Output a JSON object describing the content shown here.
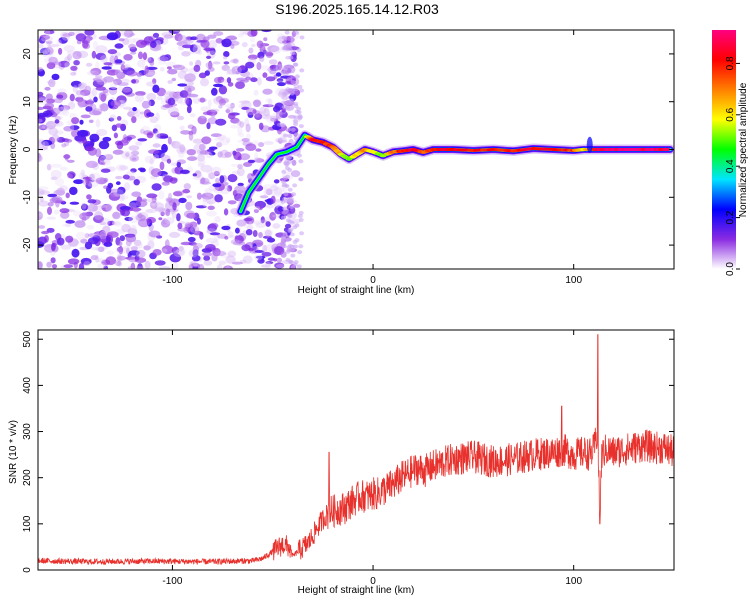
{
  "title": "S196.2025.165.14.12.R03",
  "chart_data": [
    {
      "type": "heatmap",
      "xlabel": "Height of straight line (km)",
      "ylabel": "Frequency (Hz)",
      "xlim": [
        -167,
        150
      ],
      "ylim": [
        -25,
        25
      ],
      "xticks": [
        -100,
        0,
        100
      ],
      "yticks": [
        -20,
        -10,
        0,
        10,
        20
      ],
      "colorbar": {
        "label": "Normalized spectral amplitude",
        "range": [
          0.0,
          0.93
        ],
        "ticks": [
          0.0,
          0.2,
          0.4,
          0.6,
          0.8
        ],
        "colors": [
          "#ffffff",
          "#8a2be2",
          "#0000ff",
          "#00e5ff",
          "#00ff00",
          "#ffff00",
          "#ff8000",
          "#ff0000",
          "#ff0080"
        ]
      },
      "track": [
        {
          "x": -66,
          "y": -13,
          "a": 0.35
        },
        {
          "x": -62,
          "y": -9,
          "a": 0.4
        },
        {
          "x": -57,
          "y": -6,
          "a": 0.35
        },
        {
          "x": -52,
          "y": -3,
          "a": 0.3
        },
        {
          "x": -48,
          "y": -1,
          "a": 0.4
        },
        {
          "x": -43,
          "y": -0.5,
          "a": 0.45
        },
        {
          "x": -38,
          "y": 0.5,
          "a": 0.4
        },
        {
          "x": -34,
          "y": 3,
          "a": 0.45
        },
        {
          "x": -30,
          "y": 2,
          "a": 0.85
        },
        {
          "x": -25,
          "y": 1.5,
          "a": 0.8
        },
        {
          "x": -20,
          "y": 0.5,
          "a": 0.75
        },
        {
          "x": -16,
          "y": -1,
          "a": 0.6
        },
        {
          "x": -12,
          "y": -2,
          "a": 0.5
        },
        {
          "x": -8,
          "y": -1,
          "a": 0.6
        },
        {
          "x": -4,
          "y": 0,
          "a": 0.7
        },
        {
          "x": 0,
          "y": -0.5,
          "a": 0.6
        },
        {
          "x": 5,
          "y": -1.3,
          "a": 0.5
        },
        {
          "x": 10,
          "y": -0.5,
          "a": 0.7
        },
        {
          "x": 15,
          "y": -0.3,
          "a": 0.8
        },
        {
          "x": 20,
          "y": 0,
          "a": 0.85
        },
        {
          "x": 25,
          "y": -0.6,
          "a": 0.75
        },
        {
          "x": 30,
          "y": 0,
          "a": 0.8
        },
        {
          "x": 40,
          "y": 0,
          "a": 0.85
        },
        {
          "x": 50,
          "y": -0.2,
          "a": 0.8
        },
        {
          "x": 60,
          "y": 0,
          "a": 0.8
        },
        {
          "x": 70,
          "y": -0.3,
          "a": 0.8
        },
        {
          "x": 80,
          "y": 0.2,
          "a": 0.85
        },
        {
          "x": 90,
          "y": 0,
          "a": 0.85
        },
        {
          "x": 100,
          "y": -0.2,
          "a": 0.75
        },
        {
          "x": 105,
          "y": 0,
          "a": 0.6
        },
        {
          "x": 112,
          "y": 0,
          "a": 0.85
        },
        {
          "x": 120,
          "y": 0,
          "a": 0.9
        },
        {
          "x": 130,
          "y": 0,
          "a": 0.92
        },
        {
          "x": 140,
          "y": 0,
          "a": 0.9
        },
        {
          "x": 148,
          "y": 0,
          "a": 0.85
        }
      ]
    },
    {
      "type": "line",
      "xlabel": "Height of straight line (km)",
      "ylabel": "SNR (10 * v/v)",
      "xlim": [
        -167,
        150
      ],
      "ylim": [
        0,
        520
      ],
      "xticks": [
        -100,
        0,
        100
      ],
      "yticks": [
        0,
        100,
        200,
        300,
        400,
        500
      ],
      "color": "#e8312c",
      "series": [
        {
          "x": [
            -167,
            -140,
            -110,
            -80,
            -60,
            -55,
            -50,
            -45,
            -42,
            -40,
            -36,
            -32,
            -28,
            -25,
            -22,
            -18,
            -14,
            -10,
            -6,
            -2,
            0,
            2,
            6,
            10,
            14,
            18,
            22,
            26,
            30,
            40,
            50,
            60,
            70,
            80,
            90,
            95,
            100,
            105,
            108,
            110,
            112,
            113,
            114,
            116,
            120,
            125,
            130,
            135,
            140,
            145,
            150
          ],
          "y": [
            20,
            18,
            19,
            18,
            20,
            25,
            40,
            55,
            50,
            30,
            45,
            60,
            90,
            110,
            125,
            130,
            135,
            150,
            160,
            160,
            165,
            165,
            175,
            185,
            200,
            210,
            220,
            215,
            225,
            240,
            245,
            235,
            240,
            250,
            255,
            260,
            250,
            255,
            250,
            260,
            300,
            110,
            250,
            260,
            255,
            260,
            265,
            270,
            265,
            265,
            255
          ]
        }
      ],
      "peaks": [
        {
          "x": 112,
          "y": 510
        },
        {
          "x": 113,
          "y": 100
        },
        {
          "x": -22,
          "y": 255
        },
        {
          "x": 94,
          "y": 355
        }
      ]
    }
  ]
}
